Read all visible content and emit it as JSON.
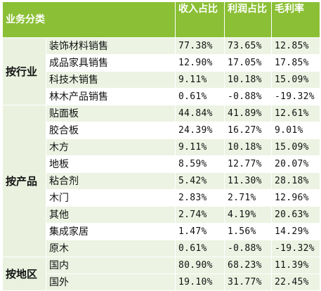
{
  "header": {
    "category": "业务分类",
    "revenue_share": "收入占比",
    "profit_share": "利润占比",
    "gross_margin": "毛利率"
  },
  "groups": [
    {
      "name": "按行业",
      "rows": [
        {
          "item": "装饰材料销售",
          "revenue": "77.38%",
          "profit": "73.65%",
          "margin": "12.85%"
        },
        {
          "item": "成品家具销售",
          "revenue": "12.90%",
          "profit": "17.05%",
          "margin": "17.85%"
        },
        {
          "item": "科技木销售",
          "revenue": "9.11%",
          "profit": "10.18%",
          "margin": "15.09%"
        },
        {
          "item": "林木产品销售",
          "revenue": "0.61%",
          "profit": "-0.88%",
          "margin": "-19.32%"
        }
      ]
    },
    {
      "name": "按产品",
      "rows": [
        {
          "item": "贴面板",
          "revenue": "44.84%",
          "profit": "41.89%",
          "margin": "12.61%"
        },
        {
          "item": "胶合板",
          "revenue": "24.39%",
          "profit": "16.27%",
          "margin": "9.01%"
        },
        {
          "item": "木方",
          "revenue": "9.11%",
          "profit": "10.18%",
          "margin": "15.09%"
        },
        {
          "item": "地板",
          "revenue": "8.59%",
          "profit": "12.77%",
          "margin": "20.07%"
        },
        {
          "item": "粘合剂",
          "revenue": "5.42%",
          "profit": "11.30%",
          "margin": "28.18%"
        },
        {
          "item": "木门",
          "revenue": "2.83%",
          "profit": "2.71%",
          "margin": "12.96%"
        },
        {
          "item": "其他",
          "revenue": "2.74%",
          "profit": "4.19%",
          "margin": "20.63%"
        },
        {
          "item": "集成家居",
          "revenue": "1.47%",
          "profit": "1.56%",
          "margin": "14.29%"
        },
        {
          "item": "原木",
          "revenue": "0.61%",
          "profit": "-0.88%",
          "margin": "-19.32%"
        }
      ]
    },
    {
      "name": "按地区",
      "rows": [
        {
          "item": "国内",
          "revenue": "80.90%",
          "profit": "68.23%",
          "margin": "11.39%"
        },
        {
          "item": "国外",
          "revenue": "19.10%",
          "profit": "31.77%",
          "margin": "22.45%"
        }
      ]
    }
  ],
  "colors": {
    "header_bg": "#8bbf35",
    "header_text": "#ffffff",
    "band_light": "#ecf3e2",
    "category_bg": "#eaf2df"
  }
}
